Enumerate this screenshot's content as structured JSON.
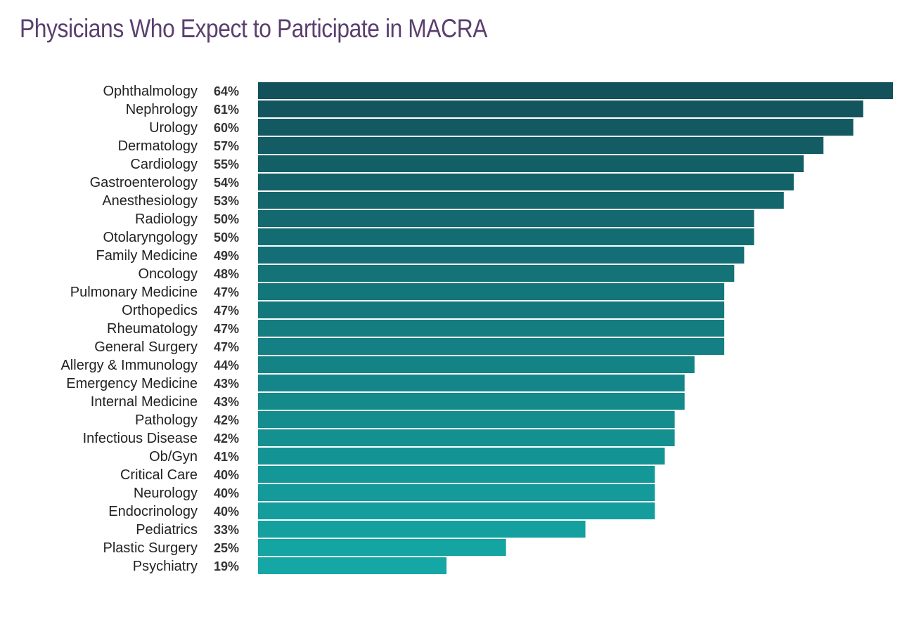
{
  "chart_data": {
    "type": "bar",
    "orientation": "horizontal",
    "title": "Physicians Who Expect to Participate in MACRA",
    "xlabel": "",
    "ylabel": "",
    "value_suffix": "%",
    "xlim": [
      0,
      64
    ],
    "grid": false,
    "legend": "none",
    "colors": {
      "title": "#5a3f6f",
      "bar_top": "#13525b",
      "bar_bottom": "#14a7a5"
    },
    "categories": [
      "Ophthalmology",
      "Nephrology",
      "Urology",
      "Dermatology",
      "Cardiology",
      "Gastroenterology",
      "Anesthesiology",
      "Radiology",
      "Otolaryngology",
      "Family Medicine",
      "Oncology",
      "Pulmonary Medicine",
      "Orthopedics",
      "Rheumatology",
      "General Surgery",
      "Allergy & Immunology",
      "Emergency Medicine",
      "Internal Medicine",
      "Pathology",
      "Infectious Disease",
      "Ob/Gyn",
      "Critical Care",
      "Neurology",
      "Endocrinology",
      "Pediatrics",
      "Plastic Surgery",
      "Psychiatry"
    ],
    "values": [
      64,
      61,
      60,
      57,
      55,
      54,
      53,
      50,
      50,
      49,
      48,
      47,
      47,
      47,
      47,
      44,
      43,
      43,
      42,
      42,
      41,
      40,
      40,
      40,
      33,
      25,
      19
    ],
    "value_labels": [
      "64%",
      "61%",
      "60%",
      "57%",
      "55%",
      "54%",
      "53%",
      "50%",
      "50%",
      "49%",
      "48%",
      "47%",
      "47%",
      "47%",
      "47%",
      "44%",
      "43%",
      "43%",
      "42%",
      "42%",
      "41%",
      "40%",
      "40%",
      "40%",
      "33%",
      "25%",
      "19%"
    ]
  }
}
